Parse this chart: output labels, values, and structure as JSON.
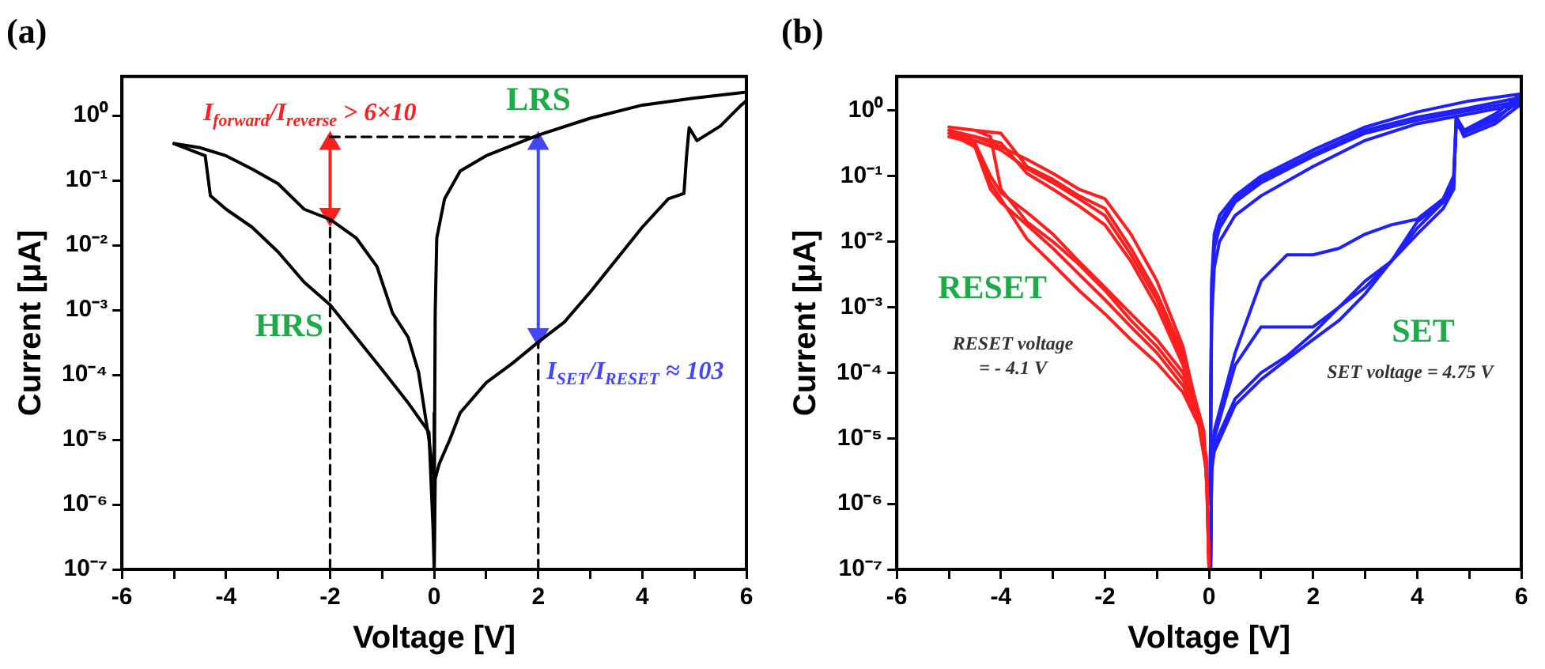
{
  "chart_data": [
    {
      "type": "line",
      "title": "(a)",
      "xlabel": "Voltage [V]",
      "ylabel": "Current [μA]",
      "log": "y",
      "grid": false,
      "marker": "none",
      "xlim": [
        -6,
        6
      ],
      "xticks": [
        -6,
        {
          "value": -5,
          "label": null
        },
        -4,
        {
          "value": -3,
          "label": null
        },
        -2,
        {
          "value": -1,
          "label": null
        },
        0,
        {
          "value": 1,
          "label": null
        },
        2,
        {
          "value": 3,
          "label": null
        },
        4,
        {
          "value": 5,
          "label": null
        },
        6
      ],
      "ylim": [
        1e-07,
        4
      ],
      "yticks": [
        {
          "value": 1e-07,
          "label": "10⁻⁷"
        },
        {
          "value": 1e-06,
          "label": "10⁻⁶"
        },
        {
          "value": 1e-05,
          "label": "10⁻⁵"
        },
        {
          "value": 0.0001,
          "label": "10⁻⁴"
        },
        {
          "value": 0.001,
          "label": "10⁻³"
        },
        {
          "value": 0.01,
          "label": "10⁻²"
        },
        {
          "value": 0.1,
          "label": "10⁻¹"
        },
        {
          "value": 1,
          "label": "10⁰"
        }
      ],
      "series": [
        {
          "color": "#000000",
          "x": [
            0,
            0.02,
            0.1,
            0.3,
            0.5,
            1,
            1.5,
            2,
            2.5,
            3,
            3.5,
            4,
            4.5,
            4.8,
            4.85,
            4.9,
            5.05,
            5.5,
            5.9,
            6
          ],
          "values": [
            1e-07,
            2.5e-06,
            4.3e-06,
            1e-05,
            2.6e-05,
            7.6e-05,
            0.00015,
            0.00032,
            0.00065,
            0.0019,
            0.006,
            0.019,
            0.052,
            0.063,
            0.24,
            0.65,
            0.41,
            0.69,
            1.45,
            1.7
          ]
        },
        {
          "color": "#000000",
          "x": [
            6,
            5,
            4,
            3,
            2,
            1,
            0.5,
            0.2,
            0.05,
            0.02,
            0.01,
            0
          ],
          "values": [
            2.3,
            1.86,
            1.45,
            0.91,
            0.5,
            0.24,
            0.14,
            0.052,
            0.013,
            0.00093,
            2.6e-05,
            1e-07
          ]
        },
        {
          "color": "#000000",
          "x": [
            -0.02,
            -0.1,
            -0.3,
            -0.5,
            -0.8,
            -1.1,
            -1.5,
            -2,
            -2.5,
            -3,
            -3.5,
            -4,
            -4.5,
            -5
          ],
          "values": [
            3e-06,
            1e-05,
            0.00011,
            0.00038,
            0.0009,
            0.0047,
            0.013,
            0.025,
            0.036,
            0.089,
            0.15,
            0.24,
            0.32,
            0.37
          ]
        },
        {
          "color": "#000000",
          "x": [
            -5,
            -4.4,
            -4.3,
            -4,
            -3.5,
            -3,
            -2.5,
            -2,
            -1.5,
            -1,
            -0.5,
            -0.1,
            -0.02,
            0
          ],
          "values": [
            0.37,
            0.24,
            0.058,
            0.036,
            0.019,
            0.0079,
            0.0027,
            0.0012,
            0.00038,
            0.00012,
            3.7e-05,
            1.3e-05,
            4e-07,
            1e-07
          ]
        },
        {
          "color": "#000000",
          "line_style": "dashed",
          "x": [
            -2,
            -2
          ],
          "values": [
            1e-07,
            0.025
          ]
        },
        {
          "color": "#000000",
          "line_style": "dashed",
          "x": [
            2,
            2
          ],
          "values": [
            1e-07,
            0.00032
          ]
        },
        {
          "color": "#000000",
          "line_style": "dashed",
          "x": [
            -2,
            2
          ],
          "values": [
            0.47,
            0.47
          ]
        },
        {
          "color": "#ff1f1f",
          "marker": "triangle",
          "x": [
            -2,
            -2
          ],
          "values": [
            0.37,
            0.03
          ]
        },
        {
          "color": "#4545ff",
          "marker": "triangle",
          "x": [
            2,
            2
          ],
          "values": [
            0.37,
            0.00042
          ]
        }
      ],
      "annotations": [
        "LRS",
        "HRS",
        "I$_{forward}$/I$_{reverse}$ > 6×10",
        "I$_{SET}$/I$_{RESET}$ ≈ 103"
      ]
    },
    {
      "type": "line",
      "title": "(b)",
      "xlabel": "Voltage [V]",
      "ylabel": "Current [μA]",
      "log": "y",
      "grid": false,
      "marker": "none",
      "xlim": [
        -6,
        6
      ],
      "xticks": [
        -6,
        {
          "value": -5,
          "label": null
        },
        -4,
        {
          "value": -3,
          "label": null
        },
        -2,
        {
          "value": -1,
          "label": null
        },
        0,
        {
          "value": 1,
          "label": null
        },
        2,
        {
          "value": 3,
          "label": null
        },
        4,
        {
          "value": 5,
          "label": null
        },
        6
      ],
      "ylim": [
        1e-07,
        3.3
      ],
      "yticks": [
        {
          "value": 1e-07,
          "label": "10⁻⁷"
        },
        {
          "value": 1e-06,
          "label": "10⁻⁶"
        },
        {
          "value": 1e-05,
          "label": "10⁻⁵"
        },
        {
          "value": 0.0001,
          "label": "10⁻⁴"
        },
        {
          "value": 0.001,
          "label": "10⁻³"
        },
        {
          "value": 0.01,
          "label": "10⁻²"
        },
        {
          "value": 0.1,
          "label": "10⁻¹"
        },
        {
          "value": 1,
          "label": "10⁰"
        }
      ],
      "series": [
        {
          "color": "#ff1f1f",
          "x": [
            -0.02,
            -0.1,
            -0.3,
            -0.5,
            -1,
            -1.5,
            -2,
            -2.5,
            -3,
            -3.5,
            -4,
            -4.5,
            -5,
            -4.5,
            -4.2,
            -4,
            -3.5,
            -3,
            -2.5,
            -2,
            -1.5,
            -1,
            -0.5,
            -0.2,
            -0.05,
            0
          ],
          "values": [
            1e-06,
            1.3e-05,
            5e-05,
            0.00025,
            0.0025,
            0.013,
            0.045,
            0.063,
            0.11,
            0.18,
            0.28,
            0.4,
            0.5,
            0.32,
            0.1,
            0.056,
            0.028,
            0.013,
            0.005,
            0.002,
            0.00079,
            0.00032,
            0.0001,
            2.5e-05,
            5e-06,
            1e-07
          ]
        },
        {
          "color": "#ff1f1f",
          "x": [
            -0.02,
            -0.1,
            -0.3,
            -0.5,
            -1,
            -1.5,
            -2,
            -2.5,
            -3,
            -3.5,
            -4,
            -4.5,
            -5,
            -4.5,
            -4.2,
            -4,
            -3.5,
            -3,
            -2.5,
            -2,
            -1.5,
            -1,
            -0.5,
            -0.2,
            -0.05,
            0
          ],
          "values": [
            1e-06,
            1e-05,
            4e-05,
            0.00016,
            0.0013,
            0.0063,
            0.025,
            0.045,
            0.079,
            0.13,
            0.25,
            0.35,
            0.45,
            0.28,
            0.063,
            0.04,
            0.018,
            0.0079,
            0.0032,
            0.0013,
            0.0005,
            0.0002,
            6.3e-05,
            2e-05,
            3.2e-06,
            1e-07
          ]
        },
        {
          "color": "#ff1f1f",
          "x": [
            -0.02,
            -0.1,
            -0.3,
            -0.5,
            -1,
            -1.5,
            -2,
            -2.5,
            -3,
            -3.5,
            -4,
            -4.5,
            -5,
            -4.5,
            -4.2,
            -4,
            -3.5,
            -3,
            -2.5,
            -2,
            -1.5,
            -1,
            -0.5,
            -0.2,
            -0.05,
            0
          ],
          "values": [
            1e-06,
            1e-05,
            4e-05,
            0.00013,
            0.001,
            0.005,
            0.018,
            0.035,
            0.063,
            0.11,
            0.32,
            0.4,
            0.4,
            0.32,
            0.079,
            0.045,
            0.011,
            0.0045,
            0.0018,
            0.00079,
            0.00032,
            0.00014,
            5e-05,
            1.6e-05,
            3.2e-06,
            1e-07
          ]
        },
        {
          "color": "#ff1f1f",
          "x": [
            -0.02,
            -0.1,
            -0.3,
            -0.5,
            -1,
            -1.5,
            -2,
            -2.5,
            -3,
            -3.5,
            -4,
            -4.5,
            -5,
            -4.5,
            -4.2,
            -4,
            -3.5,
            -3,
            -2.5,
            -2,
            -1.5,
            -1,
            -0.5,
            -0.2,
            -0.05,
            0
          ],
          "values": [
            1e-06,
            1e-05,
            5e-05,
            0.0002,
            0.0016,
            0.0079,
            0.032,
            0.05,
            0.089,
            0.14,
            0.45,
            0.5,
            0.56,
            0.5,
            0.4,
            0.063,
            0.02,
            0.01,
            0.0045,
            0.0018,
            0.00063,
            0.00025,
            7.9e-05,
            2.5e-05,
            4e-06,
            1e-07
          ]
        },
        {
          "color": "#1f1fff",
          "x": [
            0.03,
            0.05,
            0.1,
            0.5,
            1,
            1.5,
            2,
            2.5,
            3,
            3.5,
            4,
            4.5,
            4.7,
            4.75,
            4.9,
            5.5,
            6,
            5,
            4,
            3,
            2,
            1,
            0.5,
            0.2,
            0.1,
            0.05,
            0.02
          ],
          "values": [
            1e-07,
            3.2e-06,
            6.3e-06,
            3.2e-05,
            7.9e-05,
            0.00016,
            0.00032,
            0.00063,
            0.0016,
            0.005,
            0.016,
            0.04,
            0.063,
            0.79,
            0.5,
            0.79,
            1.4,
            1,
            0.71,
            0.45,
            0.2,
            0.079,
            0.04,
            0.016,
            0.0079,
            0.001,
            1e-06
          ]
        },
        {
          "color": "#1f1fff",
          "x": [
            0.03,
            0.05,
            0.1,
            0.5,
            1,
            1.5,
            2,
            2.5,
            3,
            3.5,
            4,
            4.5,
            4.7,
            4.75,
            4.9,
            5.5,
            6,
            5,
            4,
            3,
            2,
            1,
            0.5,
            0.2,
            0.1,
            0.05,
            0.02
          ],
          "values": [
            1e-07,
            3.2e-06,
            7.9e-06,
            4e-05,
            0.0001,
            0.00018,
            0.0004,
            0.001,
            0.002,
            0.005,
            0.013,
            0.032,
            0.063,
            0.71,
            0.4,
            0.63,
            1.26,
            0.89,
            0.63,
            0.35,
            0.14,
            0.05,
            0.025,
            0.01,
            0.004,
            0.00063,
            1e-06
          ]
        },
        {
          "color": "#1f1fff",
          "x": [
            0.03,
            0.05,
            0.1,
            0.5,
            1,
            1.5,
            2,
            2.5,
            3,
            3.5,
            4,
            4.5,
            4.7,
            4.75,
            4.9,
            5.5,
            6,
            5,
            4,
            3,
            2,
            1,
            0.5,
            0.2,
            0.1,
            0.05,
            0.02
          ],
          "values": [
            1e-07,
            4e-06,
            1e-05,
            0.00013,
            0.0005,
            0.0005,
            0.0005,
            0.001,
            0.0025,
            0.005,
            0.02,
            0.04,
            0.079,
            0.63,
            0.45,
            0.71,
            1.6,
            1.1,
            0.79,
            0.5,
            0.22,
            0.089,
            0.045,
            0.02,
            0.01,
            0.0016,
            1e-06
          ]
        },
        {
          "color": "#1f1fff",
          "x": [
            0.03,
            0.05,
            0.1,
            0.5,
            1,
            1.5,
            2,
            2.5,
            3,
            3.5,
            4,
            4.5,
            4.7,
            4.75,
            4.9,
            5.5,
            6,
            5,
            4,
            3,
            2,
            1,
            0.5,
            0.2,
            0.1,
            0.05,
            0.02
          ],
          "values": [
            1e-07,
            5e-06,
            1.3e-05,
            0.0002,
            0.0025,
            0.0063,
            0.0063,
            0.0079,
            0.013,
            0.018,
            0.022,
            0.045,
            0.1,
            0.79,
            0.5,
            0.89,
            1.8,
            1.4,
            0.95,
            0.56,
            0.25,
            0.1,
            0.05,
            0.025,
            0.013,
            0.0025,
            1e-06
          ]
        }
      ],
      "annotations": [
        "RESET",
        "RESET voltage\n= - 4.1 V",
        "SET",
        "SET voltage = 4.75 V"
      ]
    }
  ]
}
